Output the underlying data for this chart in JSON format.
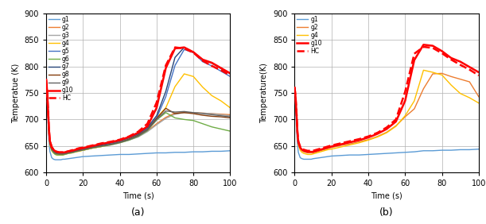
{
  "title_a": "(a)",
  "title_b": "(b)",
  "xlabel": "Time (s)",
  "ylabel_a": "Temperatue (K)",
  "ylabel_b": "Temperature(K)",
  "xlim": [
    0,
    100
  ],
  "ylim": [
    600,
    900
  ],
  "yticks": [
    600,
    650,
    700,
    750,
    800,
    850,
    900
  ],
  "xticks": [
    0,
    20,
    40,
    60,
    80,
    100
  ],
  "background_color": "#ffffff",
  "grid_color": "#b0b0b0",
  "series_a": {
    "g1": {
      "color": "#5b9bd5",
      "lw": 1.0,
      "ls": "-",
      "zorder": 2
    },
    "g2": {
      "color": "#ed7d31",
      "lw": 1.0,
      "ls": "-",
      "zorder": 2
    },
    "g3": {
      "color": "#a5a5a5",
      "lw": 1.0,
      "ls": "-",
      "zorder": 2
    },
    "g4": {
      "color": "#ffc000",
      "lw": 1.0,
      "ls": "-",
      "zorder": 2
    },
    "g5": {
      "color": "#4472c4",
      "lw": 1.0,
      "ls": "-",
      "zorder": 2
    },
    "g6": {
      "color": "#70ad47",
      "lw": 1.0,
      "ls": "-",
      "zorder": 2
    },
    "g7": {
      "color": "#264478",
      "lw": 1.0,
      "ls": "-",
      "zorder": 2
    },
    "g8": {
      "color": "#843c0c",
      "lw": 1.0,
      "ls": "-",
      "zorder": 2
    },
    "g9": {
      "color": "#636363",
      "lw": 1.0,
      "ls": "-",
      "zorder": 2
    },
    "g10": {
      "color": "#ff0000",
      "lw": 1.8,
      "ls": "-",
      "zorder": 3
    },
    "HC": {
      "color": "#ff0000",
      "lw": 1.8,
      "ls": "--",
      "zorder": 3
    }
  },
  "series_b": {
    "g1": {
      "color": "#5b9bd5",
      "lw": 1.0,
      "ls": "-",
      "zorder": 2
    },
    "g2": {
      "color": "#ed7d31",
      "lw": 1.0,
      "ls": "-",
      "zorder": 2
    },
    "g4": {
      "color": "#ffc000",
      "lw": 1.0,
      "ls": "-",
      "zorder": 2
    },
    "g10": {
      "color": "#ff0000",
      "lw": 1.8,
      "ls": "-",
      "zorder": 3
    },
    "HC": {
      "color": "#ff0000",
      "lw": 1.8,
      "ls": "--",
      "zorder": 3
    }
  },
  "t": [
    0,
    0.5,
    1,
    1.5,
    2,
    3,
    4,
    5,
    6,
    7,
    8,
    9,
    10,
    12,
    14,
    16,
    18,
    20,
    25,
    30,
    35,
    40,
    45,
    50,
    55,
    60,
    65,
    70,
    75,
    80,
    85,
    90,
    95,
    100
  ],
  "data_a": {
    "g1": [
      775,
      750,
      700,
      660,
      640,
      628,
      625,
      624,
      624,
      624,
      624,
      625,
      625,
      626,
      627,
      628,
      629,
      630,
      631,
      632,
      633,
      634,
      634,
      635,
      636,
      637,
      637,
      638,
      638,
      639,
      639,
      640,
      640,
      641
    ],
    "g2": [
      775,
      755,
      720,
      680,
      658,
      645,
      640,
      637,
      636,
      635,
      635,
      635,
      635,
      637,
      638,
      640,
      641,
      642,
      646,
      649,
      653,
      657,
      662,
      669,
      678,
      692,
      704,
      712,
      713,
      713,
      712,
      711,
      710,
      709
    ],
    "g3": [
      772,
      752,
      716,
      678,
      655,
      643,
      638,
      635,
      634,
      634,
      634,
      634,
      634,
      636,
      638,
      639,
      641,
      642,
      646,
      649,
      652,
      656,
      661,
      667,
      677,
      690,
      702,
      710,
      713,
      713,
      712,
      711,
      709,
      707
    ],
    "g4": [
      768,
      748,
      712,
      674,
      652,
      641,
      637,
      634,
      633,
      633,
      633,
      633,
      634,
      636,
      637,
      639,
      640,
      642,
      646,
      649,
      653,
      658,
      663,
      671,
      682,
      703,
      722,
      762,
      786,
      781,
      761,
      745,
      735,
      722
    ],
    "g5": [
      774,
      754,
      718,
      680,
      658,
      646,
      641,
      638,
      637,
      636,
      636,
      636,
      636,
      638,
      640,
      641,
      643,
      644,
      648,
      652,
      655,
      659,
      665,
      672,
      683,
      703,
      743,
      802,
      832,
      826,
      809,
      801,
      791,
      781
    ],
    "g6": [
      770,
      750,
      714,
      676,
      654,
      642,
      637,
      634,
      633,
      633,
      633,
      633,
      634,
      636,
      637,
      639,
      641,
      642,
      646,
      649,
      652,
      656,
      661,
      668,
      679,
      699,
      713,
      703,
      700,
      698,
      692,
      686,
      682,
      678
    ],
    "g7": [
      774,
      754,
      718,
      680,
      658,
      646,
      641,
      638,
      637,
      636,
      636,
      636,
      637,
      639,
      640,
      642,
      643,
      645,
      648,
      652,
      656,
      660,
      666,
      673,
      685,
      707,
      753,
      817,
      836,
      827,
      813,
      806,
      796,
      786
    ],
    "g8": [
      773,
      753,
      717,
      679,
      657,
      645,
      640,
      637,
      636,
      635,
      635,
      635,
      636,
      637,
      639,
      640,
      642,
      643,
      647,
      650,
      653,
      657,
      663,
      670,
      681,
      702,
      721,
      711,
      713,
      711,
      708,
      706,
      705,
      703
    ],
    "g9": [
      772,
      752,
      716,
      678,
      656,
      644,
      639,
      636,
      635,
      635,
      635,
      635,
      635,
      637,
      638,
      640,
      641,
      643,
      647,
      650,
      653,
      657,
      662,
      669,
      680,
      700,
      716,
      714,
      715,
      713,
      711,
      709,
      707,
      705
    ],
    "g10": [
      775,
      755,
      720,
      682,
      660,
      648,
      643,
      640,
      639,
      638,
      638,
      638,
      638,
      640,
      641,
      643,
      645,
      646,
      650,
      654,
      657,
      661,
      667,
      675,
      687,
      722,
      797,
      834,
      836,
      827,
      813,
      807,
      797,
      787
    ],
    "HC": [
      775,
      755,
      720,
      682,
      660,
      648,
      643,
      640,
      639,
      638,
      638,
      638,
      638,
      640,
      642,
      644,
      646,
      647,
      651,
      655,
      658,
      662,
      668,
      677,
      692,
      732,
      802,
      836,
      834,
      826,
      811,
      801,
      793,
      783
    ]
  },
  "data_b": {
    "g1": [
      760,
      730,
      685,
      655,
      638,
      628,
      626,
      625,
      625,
      625,
      625,
      625,
      626,
      627,
      628,
      629,
      630,
      631,
      632,
      633,
      633,
      634,
      635,
      636,
      637,
      638,
      639,
      641,
      641,
      642,
      642,
      643,
      643,
      644
    ],
    "g2": [
      760,
      740,
      710,
      675,
      655,
      645,
      641,
      639,
      638,
      637,
      637,
      637,
      637,
      639,
      641,
      643,
      645,
      647,
      651,
      654,
      658,
      662,
      668,
      676,
      688,
      705,
      720,
      758,
      786,
      787,
      781,
      776,
      771,
      743
    ],
    "g4": [
      757,
      738,
      707,
      671,
      652,
      642,
      638,
      636,
      635,
      634,
      634,
      634,
      635,
      637,
      639,
      641,
      643,
      644,
      648,
      652,
      656,
      661,
      667,
      675,
      687,
      707,
      735,
      793,
      789,
      784,
      765,
      749,
      741,
      731
    ],
    "g10": [
      760,
      742,
      712,
      676,
      657,
      647,
      643,
      641,
      640,
      639,
      639,
      639,
      639,
      641,
      643,
      645,
      647,
      649,
      653,
      657,
      661,
      666,
      673,
      682,
      696,
      735,
      812,
      841,
      839,
      829,
      816,
      809,
      799,
      789
    ],
    "HC": [
      760,
      743,
      714,
      678,
      659,
      649,
      645,
      643,
      642,
      641,
      641,
      641,
      641,
      643,
      645,
      647,
      649,
      651,
      655,
      659,
      663,
      668,
      675,
      685,
      700,
      752,
      824,
      837,
      835,
      825,
      813,
      803,
      794,
      783
    ]
  }
}
